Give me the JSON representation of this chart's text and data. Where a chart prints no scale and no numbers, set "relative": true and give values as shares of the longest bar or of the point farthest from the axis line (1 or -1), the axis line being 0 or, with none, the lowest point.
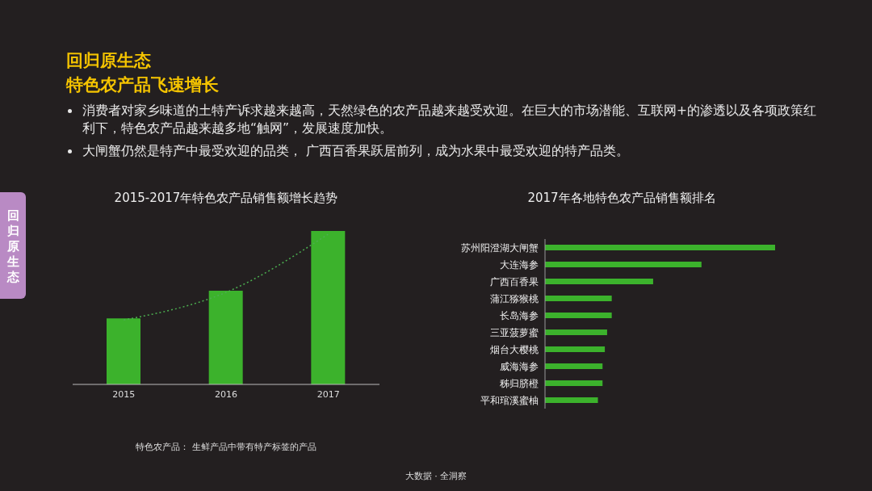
{
  "chart_data": [
    {
      "type": "other",
      "title": "回归原生态",
      "subtitle": "特色农产品飞速增长",
      "annotations": [
        "消费者对家乡味道的土特产诉求越来越高，天然绿色的农产品越来越受欢迎。在巨大的市场潜能、互联网+的渗透以及各项政策红利下，特色农产品越来越多地“触网”，发展速度加快。",
        "大闸蟹仍然是特产中最受欢迎的品类， 广西百香果跃居前列，成为水果中最受欢迎的特产品类。",
        "回归原生态",
        "大数据 · 全洞察"
      ]
    },
    {
      "type": "bar",
      "title": "2015-2017年特色农产品销售额增长趋势",
      "relative": true,
      "categories": [
        "2015",
        "2016",
        "2017"
      ],
      "series": [
        {
          "type": "bar",
          "color": "#3cb22c",
          "values": [
            0.43,
            0.61,
            1
          ]
        },
        {
          "type": "line",
          "color": "#4caf50",
          "values": [
            0.42,
            0.6,
            0.98
          ],
          "line_style": "dotted",
          "marker": "none"
        }
      ],
      "annotations": [
        "特色农产品： 生鲜产品中带有特产标签的产品"
      ]
    },
    {
      "type": "bar",
      "orientation": "horizontal",
      "title": "2017年各地特色农产品销售额排名",
      "relative": true,
      "categories": [
        "苏州阳澄湖大闸蟹",
        "大连海参",
        "广西百香果",
        "蒲江猕猴桃",
        "长岛海参",
        "三亚菠萝蜜",
        "烟台大樱桃",
        "威海海参",
        "秭归脐橙",
        "平和琯溪蜜柚"
      ],
      "color": "#3cb22c",
      "values": [
        1,
        0.68,
        0.47,
        0.29,
        0.29,
        0.27,
        0.26,
        0.25,
        0.25,
        0.23
      ]
    }
  ]
}
